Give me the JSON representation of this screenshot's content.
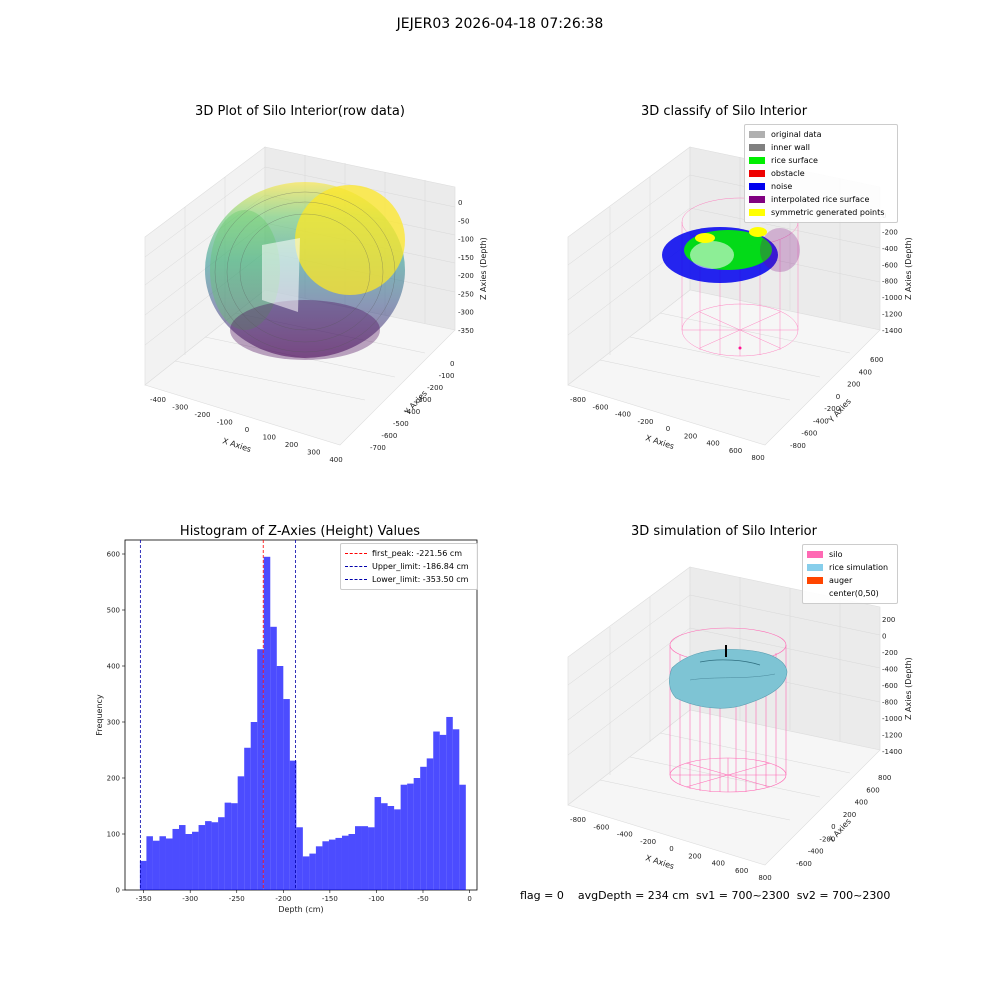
{
  "suptitle": "JEJER03 2026-04-18 07:26:38",
  "panels": {
    "p1": {
      "title": "3D Plot of Silo Interior(row data)",
      "xlabel": "X Axies",
      "ylabel": "Y Axies",
      "zlabel": "Z Axies (Depth)",
      "xticks": [
        "-400",
        "-300",
        "-200",
        "-100",
        "0",
        "100",
        "200",
        "300",
        "400"
      ],
      "yticks": [
        "0",
        "-100",
        "-200",
        "-300",
        "-400",
        "-500",
        "-600",
        "-700"
      ],
      "zticks": [
        "0",
        "-50",
        "-100",
        "-150",
        "-200",
        "-250",
        "-300",
        "-350"
      ]
    },
    "p2": {
      "title": "3D classify of Silo Interior",
      "xlabel": "X Axies",
      "ylabel": "Y Axies",
      "zlabel": "Z Axies (Depth)",
      "xticks": [
        "-800",
        "-600",
        "-400",
        "-200",
        "0",
        "200",
        "400",
        "600",
        "800"
      ],
      "yticks": [
        "600",
        "400",
        "200",
        "0",
        "-200",
        "-400",
        "-600",
        "-800"
      ],
      "zticks": [
        "0",
        "-200",
        "-400",
        "-600",
        "-800",
        "-1000",
        "-1200",
        "-1400"
      ],
      "legend": [
        {
          "label": "original data",
          "color": "#b0b0b0"
        },
        {
          "label": "inner wall",
          "color": "#808080"
        },
        {
          "label": "rice surface",
          "color": "#00ee00"
        },
        {
          "label": "obstacle",
          "color": "#ee0000"
        },
        {
          "label": "noise",
          "color": "#0000ee"
        },
        {
          "label": "interpolated rice surface",
          "color": "#800080"
        },
        {
          "label": "symmetric generated points",
          "color": "#ffff00"
        }
      ]
    },
    "p4": {
      "title": "3D simulation of Silo Interior",
      "xlabel": "X Axies",
      "ylabel": "Y Axies",
      "zlabel": "Z Axies (Depth)",
      "xticks": [
        "-800",
        "-600",
        "-400",
        "-200",
        "0",
        "200",
        "400",
        "600",
        "800"
      ],
      "yticks": [
        "800",
        "600",
        "400",
        "200",
        "0",
        "-200",
        "-400",
        "-600"
      ],
      "zticks": [
        "200",
        "0",
        "-200",
        "-400",
        "-600",
        "-800",
        "-1000",
        "-1200",
        "-1400"
      ],
      "legend": [
        {
          "label": "silo",
          "color": "#ff69b4"
        },
        {
          "label": "rice simulation",
          "color": "#87ceeb"
        },
        {
          "label": "auger",
          "color": "#ff4500"
        },
        {
          "label": "center(0,50)",
          "color": ""
        }
      ]
    }
  },
  "footer": "flag = 0    avgDepth = 234 cm  sv1 = 700~2300  sv2 = 700~2300",
  "chart_data": [
    {
      "type": "bar",
      "title": "Histogram of Z-Axies (Height) Values",
      "xlabel": "Depth (cm)",
      "ylabel": "Frequency",
      "xlim": [
        -370,
        8
      ],
      "ylim": [
        0,
        625
      ],
      "bin_start": -354,
      "bin_width": 7,
      "values": [
        52,
        96,
        88,
        96,
        92,
        109,
        116,
        100,
        104,
        116,
        123,
        121,
        130,
        156,
        155,
        203,
        254,
        300,
        430,
        595,
        470,
        400,
        341,
        231,
        112,
        60,
        65,
        78,
        87,
        90,
        93,
        97,
        100,
        114,
        114,
        112,
        166,
        155,
        150,
        144,
        188,
        190,
        200,
        220,
        235,
        283,
        277,
        309,
        287,
        188
      ],
      "xticks": [
        -350,
        -300,
        -250,
        -200,
        -150,
        -100,
        -50,
        0
      ],
      "yticks": [
        0,
        100,
        200,
        300,
        400,
        500,
        600
      ],
      "color": "#0000ff",
      "vlines": [
        {
          "label": "first_peak: -221.56 cm",
          "x": -221.56,
          "color": "#ff0000"
        },
        {
          "label": "Upper_limit: -186.84 cm",
          "x": -186.84,
          "color": "#0000aa"
        },
        {
          "label": "Lower_limit: -353.50 cm",
          "x": -353.5,
          "color": "#0000aa"
        }
      ]
    }
  ]
}
